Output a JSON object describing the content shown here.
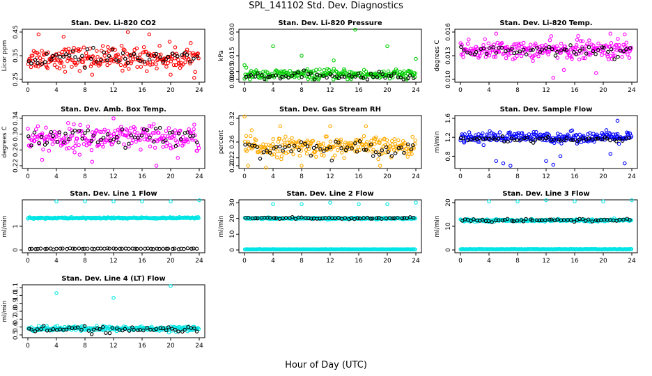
{
  "title": "SPL_141102  Std. Dev. Diagnostics",
  "xlabel": "Hour of Day (UTC)",
  "chart_data": [
    {
      "type": "scatter",
      "title": "Stan. Dev. Li-820 CO2",
      "ylabel": "Licor ppm",
      "xlim": [
        0,
        24
      ],
      "xticks": [
        0,
        4,
        8,
        12,
        16,
        20,
        24
      ],
      "ylim": [
        0.25,
        0.45
      ],
      "yticks": [
        "0.25",
        "0.35",
        "0.45"
      ],
      "series_colors": [
        "#ff0000",
        "#000000"
      ],
      "series": [
        {
          "center": 0.34,
          "spread": 0.03,
          "outliers": [
            [
              1.5,
              0.44
            ],
            [
              5,
              0.43
            ],
            [
              9,
              0.27
            ],
            [
              14,
              0.45
            ],
            [
              17,
              0.44
            ],
            [
              20,
              0.27
            ]
          ]
        },
        {
          "center": 0.34,
          "spread": 0.02
        }
      ]
    },
    {
      "type": "scatter",
      "title": "Stan. Dev. Li-820 Pressure",
      "ylabel": "kPa",
      "xlim": [
        0,
        24
      ],
      "xticks": [
        0,
        4,
        8,
        12,
        16,
        20,
        24
      ],
      "ylim": [
        0,
        0.03
      ],
      "yticks": [
        "0.000",
        "0.005",
        "0.015",
        "0.030"
      ],
      "series_colors": [
        "#00cc00",
        "#000000"
      ],
      "series": [
        {
          "center": 0.003,
          "spread": 0.002,
          "outliers": [
            [
              0,
              0.009
            ],
            [
              4,
              0.021
            ],
            [
              8,
              0.015
            ],
            [
              15.5,
              0.032
            ],
            [
              20,
              0.021
            ],
            [
              24,
              0.013
            ],
            [
              12.5,
              0.012
            ]
          ]
        },
        {
          "center": 0.002,
          "spread": 0.0015
        }
      ]
    },
    {
      "type": "scatter",
      "title": "Stan. Dev. Li-820 Temp.",
      "ylabel": "degrees C",
      "xlim": [
        0,
        24
      ],
      "xticks": [
        0,
        4,
        8,
        12,
        16,
        20,
        24
      ],
      "ylim": [
        0.01,
        0.016
      ],
      "yticks": [
        "0.010",
        "0.013",
        "0.016"
      ],
      "series_colors": [
        "#ff00ff",
        "#000000"
      ],
      "series": [
        {
          "center": 0.0137,
          "spread": 0.0007,
          "outliers": [
            [
              5,
              0.0158
            ],
            [
              13,
              0.0102
            ],
            [
              16.5,
              0.0155
            ],
            [
              21,
              0.0158
            ],
            [
              23,
              0.0157
            ],
            [
              14.5,
              0.0112
            ],
            [
              19,
              0.0108
            ]
          ]
        },
        {
          "center": 0.0137,
          "spread": 0.0005
        }
      ]
    },
    {
      "type": "scatter",
      "title": "Stan. Dev. Amb. Box Temp.",
      "ylabel": "degrees C",
      "xlim": [
        0,
        24
      ],
      "xticks": [
        0,
        4,
        8,
        12,
        16,
        20,
        24
      ],
      "ylim": [
        0.22,
        0.34
      ],
      "yticks": [
        "0.22",
        "0.26",
        "0.30",
        "0.34"
      ],
      "series_colors": [
        "#ff00ff",
        "#000000"
      ],
      "series": [
        {
          "center": 0.29,
          "spread": 0.02,
          "outliers": [
            [
              9,
              0.23
            ],
            [
              12,
              0.34
            ],
            [
              18,
              0.22
            ],
            [
              21,
              0.24
            ],
            [
              2,
              0.235
            ]
          ]
        },
        {
          "center": 0.29,
          "spread": 0.017
        }
      ]
    },
    {
      "type": "scatter",
      "title": "Stan. Dev. Gas Stream RH",
      "ylabel": "percent",
      "xlim": [
        0,
        24
      ],
      "xticks": [
        0,
        4,
        8,
        12,
        16,
        20,
        24
      ],
      "ylim": [
        0.2,
        0.32
      ],
      "yticks": [
        "0.20",
        "0.22",
        "0.26",
        "0.32"
      ],
      "series_colors": [
        "#ffaa00",
        "#000000"
      ],
      "series": [
        {
          "center": 0.248,
          "spread": 0.015,
          "outliers": [
            [
              0,
              0.325
            ],
            [
              1,
              0.29
            ],
            [
              5,
              0.3
            ],
            [
              12,
              0.3
            ],
            [
              17,
              0.3
            ],
            [
              0.5,
              0.2
            ],
            [
              3,
              0.195
            ],
            [
              8,
              0.2
            ],
            [
              19,
              0.2
            ]
          ]
        },
        {
          "center": 0.245,
          "spread": 0.012
        }
      ]
    },
    {
      "type": "scatter",
      "title": "Stan. Dev. Sample Flow",
      "ylabel": "ml/min",
      "xlim": [
        0,
        24
      ],
      "xticks": [
        0,
        4,
        8,
        12,
        16,
        20,
        24
      ],
      "ylim": [
        0.6,
        1.6
      ],
      "yticks": [
        "0.8",
        "1.2",
        "1.6"
      ],
      "series_colors": [
        "#0000ff",
        "#000000"
      ],
      "series": [
        {
          "center": 1.2,
          "spread": 0.07,
          "outliers": [
            [
              5,
              0.7
            ],
            [
              6,
              0.65
            ],
            [
              7,
              0.6
            ],
            [
              12,
              0.7
            ],
            [
              13,
              0.62
            ],
            [
              22,
              1.55
            ],
            [
              23,
              0.65
            ],
            [
              21,
              0.85
            ],
            [
              14,
              0.8
            ]
          ]
        },
        {
          "center": 1.15,
          "spread": 0.04
        }
      ]
    },
    {
      "type": "scatter",
      "title": "Stan. Dev. Line 1 Flow",
      "ylabel": "ml/min",
      "xlim": [
        0,
        24
      ],
      "xticks": [
        0,
        4,
        8,
        12,
        16,
        20,
        24
      ],
      "ylim": [
        0,
        2
      ],
      "yticks": [
        "0",
        "1"
      ],
      "series_colors": [
        "#00e5e5",
        "#000000"
      ],
      "series": [
        {
          "center": 1.35,
          "spread": 0.02,
          "outliers": [
            [
              4,
              2.05
            ],
            [
              8,
              2.05
            ],
            [
              12,
              2.05
            ],
            [
              16,
              2.05
            ],
            [
              20,
              2.05
            ],
            [
              24,
              2.1
            ]
          ]
        },
        {
          "center": 0.05,
          "spread": 0.01
        }
      ]
    },
    {
      "type": "scatter",
      "title": "Stan. Dev. Line 2 Flow",
      "ylabel": "ml/min",
      "xlim": [
        0,
        24
      ],
      "xticks": [
        0,
        4,
        8,
        12,
        16,
        20,
        24
      ],
      "ylim": [
        0,
        30
      ],
      "yticks": [
        "0",
        "10",
        "20",
        "30"
      ],
      "series_colors": [
        "#00e5e5",
        "#000000"
      ],
      "series": [
        {
          "center": 20,
          "spread": 0.3,
          "outliers": [
            [
              4,
              29
            ],
            [
              8,
              29
            ],
            [
              12,
              30
            ],
            [
              16,
              29
            ],
            [
              20,
              29
            ],
            [
              24,
              30
            ]
          ]
        },
        {
          "center": 20.2,
          "spread": 0.3
        },
        {
          "center": 0.4,
          "spread": 0.05,
          "color": "#00e5e5"
        }
      ]
    },
    {
      "type": "scatter",
      "title": "Stan. Dev. Line 3 Flow",
      "ylabel": "ml/min",
      "xlim": [
        0,
        24
      ],
      "xticks": [
        0,
        4,
        8,
        12,
        16,
        20,
        24
      ],
      "ylim": [
        0,
        20
      ],
      "yticks": [
        "0",
        "10",
        "20"
      ],
      "series_colors": [
        "#00e5e5",
        "#000000"
      ],
      "series": [
        {
          "center": 12.5,
          "spread": 0.3,
          "outliers": [
            [
              4,
              20.5
            ],
            [
              8,
              20.5
            ],
            [
              12,
              21
            ],
            [
              16,
              20.5
            ],
            [
              20,
              20.5
            ],
            [
              24,
              21
            ]
          ]
        },
        {
          "center": 12.6,
          "spread": 0.4
        },
        {
          "center": 0.3,
          "spread": 0.05,
          "color": "#00e5e5"
        }
      ]
    },
    {
      "type": "scatter",
      "title": "Stan. Dev. Line 4 (LT) Flow",
      "ylabel": "ml/min",
      "xlim": [
        0,
        24
      ],
      "xticks": [
        0,
        4,
        8,
        12,
        16,
        20,
        24
      ],
      "ylim": [
        0.5,
        1.1
      ],
      "yticks": [
        "0.5",
        "0.6",
        "0.7",
        "0.8",
        "0.9",
        "1.0",
        "1.1"
      ],
      "series_colors": [
        "#00e5e5",
        "#000000"
      ],
      "series": [
        {
          "center": 0.58,
          "spread": 0.02,
          "outliers": [
            [
              4,
              1.03
            ],
            [
              12,
              0.97
            ],
            [
              20,
              1.12
            ]
          ]
        },
        {
          "center": 0.57,
          "spread": 0.025
        }
      ]
    }
  ]
}
